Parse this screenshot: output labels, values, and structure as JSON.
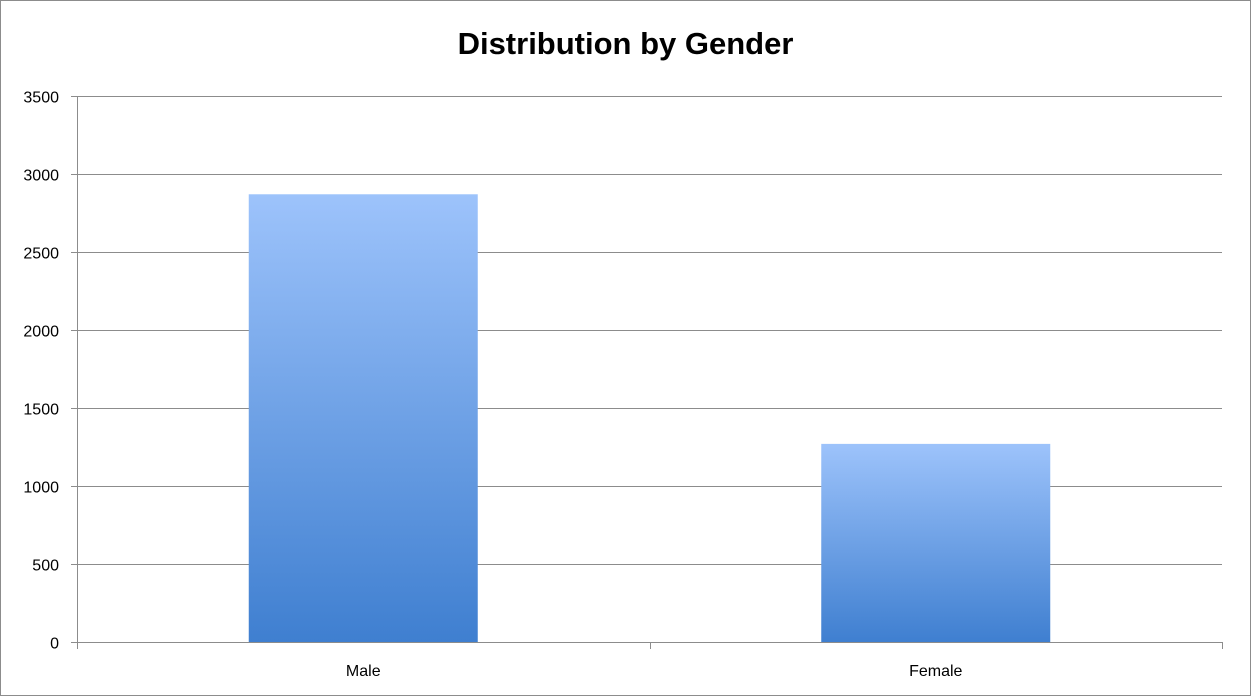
{
  "chart_data": {
    "type": "bar",
    "title": "Distribution by Gender",
    "xlabel": "",
    "ylabel": "",
    "categories": [
      "Male",
      "Female"
    ],
    "values": [
      2870,
      1270
    ],
    "ylim": [
      0,
      3500
    ],
    "yticks": [
      0,
      500,
      1000,
      1500,
      2000,
      2500,
      3000,
      3500
    ],
    "grid": true,
    "legend": "none",
    "colors": {
      "bar_top": "#9dc3fb",
      "bar_bottom": "#3f7fd0",
      "grid": "#8c8c8c",
      "axis": "#8c8c8c"
    }
  }
}
